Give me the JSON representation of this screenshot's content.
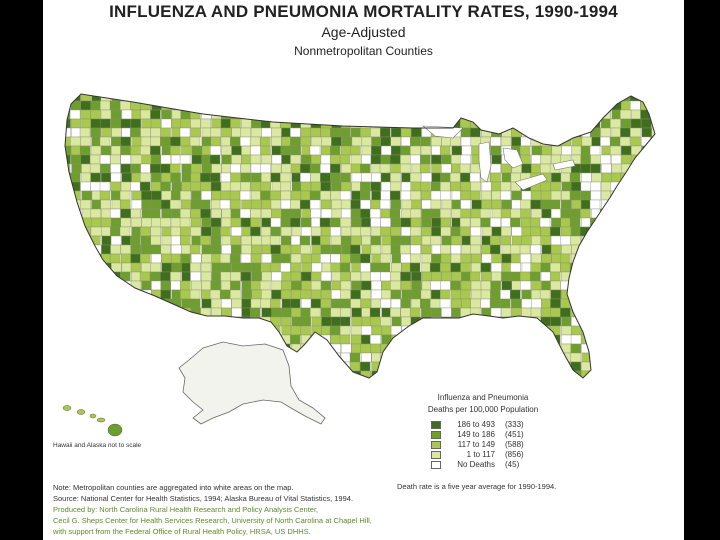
{
  "title": "INFLUENZA AND PNEUMONIA MORTALITY RATES, 1990-1994",
  "subtitle": "Age-Adjusted",
  "subtitle2": "Nonmetropolitan Counties",
  "hawaii_alaska_note": "Hawaii and Alaska not to scale",
  "legend": {
    "title_line1": "Influenza and Pneumonia",
    "title_line2": "Deaths per 100,000 Population",
    "items": [
      {
        "range": "186 to 493",
        "count": "(333)",
        "color": "#3f6f1c"
      },
      {
        "range": "149 to 186",
        "count": "(451)",
        "color": "#6e9e2e"
      },
      {
        "range": "117 to 149",
        "count": "(588)",
        "color": "#a9c84e"
      },
      {
        "range": "1 to 117",
        "count": "(856)",
        "color": "#dbe8a0"
      },
      {
        "range": "No Deaths",
        "count": "(45)",
        "color": "#ffffff"
      }
    ]
  },
  "notes": {
    "line1": "Note: Metropolitan counties are aggregated into white areas on the map.",
    "line2": "Source: National Center for Health Statistics, 1994; Alaska Bureau of Vital Statistics, 1994.",
    "line3": "Produced by: North Carolina Rural Health Research and Policy Analysis Center,",
    "line4": "Cecil G. Sheps Center for Health Services Research, University of North Carolina at Chapel Hill,",
    "line5": "with support from the Federal Office of Rural Health Policy, HRSA, US DHHS."
  },
  "death_rate_note": "Death rate is a five year average for 1990-1994."
}
